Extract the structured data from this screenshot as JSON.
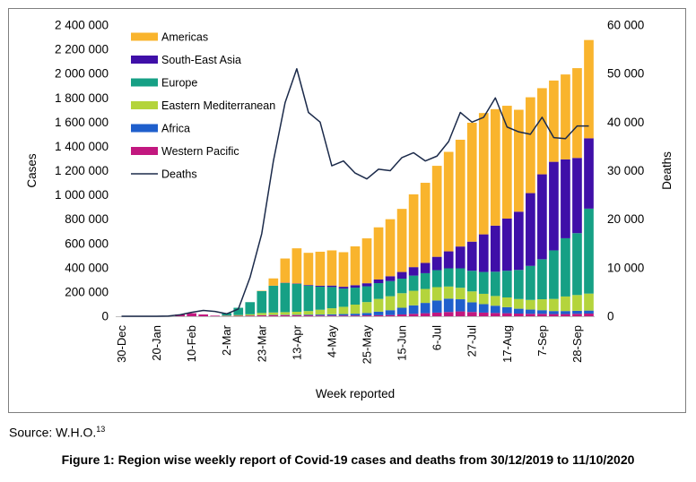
{
  "chart_data": {
    "type": "bar",
    "xlabel": "Week reported",
    "ylabel": "Cases",
    "y2label": "Deaths",
    "ylim": [
      0,
      2400000
    ],
    "y2lim": [
      0,
      60000
    ],
    "yticks": [
      "0",
      "200 000",
      "400 000",
      "600 000",
      "800 000",
      "1 000 000",
      "1 200 000",
      "1 400 000",
      "1 600 000",
      "1 800 000",
      "2 000 000",
      "2 200 000",
      "2 400 000"
    ],
    "y2ticks": [
      "0",
      "10 000",
      "20 000",
      "30 000",
      "40 000",
      "50 000",
      "60 000"
    ],
    "tick_labels": [
      "30-Dec",
      "20-Jan",
      "10-Feb",
      "2-Mar",
      "23-Mar",
      "13-Apr",
      "4-May",
      "25-May",
      "15-Jun",
      "6-Jul",
      "27-Jul",
      "17-Aug",
      "7-Sep",
      "28-Sep"
    ],
    "tick_every": 3,
    "n_weeks": 41,
    "legend_position": "top-left",
    "series": [
      {
        "name": "Americas",
        "color": "#f9b42d",
        "values": [
          0,
          0,
          0,
          0,
          0,
          0,
          0,
          0,
          0,
          0,
          0,
          0,
          3000,
          60000,
          200000,
          290000,
          265000,
          280000,
          290000,
          285000,
          320000,
          370000,
          430000,
          470000,
          520000,
          600000,
          660000,
          750000,
          820000,
          880000,
          980000,
          1000000,
          960000,
          930000,
          840000,
          790000,
          710000,
          670000,
          700000,
          740000,
          810000
        ]
      },
      {
        "name": "South-East Asia",
        "color": "#3f0fa8",
        "values": [
          0,
          0,
          0,
          0,
          0,
          0,
          0,
          0,
          0,
          0,
          0,
          0,
          500,
          1000,
          2000,
          3000,
          5000,
          8000,
          12000,
          15000,
          20000,
          25000,
          30000,
          40000,
          55000,
          70000,
          85000,
          110000,
          140000,
          180000,
          240000,
          310000,
          380000,
          430000,
          480000,
          600000,
          700000,
          730000,
          650000,
          620000,
          580000
        ]
      },
      {
        "name": "Europe",
        "color": "#16a085",
        "values": [
          0,
          0,
          0,
          0,
          0,
          0,
          0,
          0,
          0,
          20000,
          60000,
          100000,
          180000,
          220000,
          240000,
          230000,
          210000,
          190000,
          175000,
          150000,
          140000,
          130000,
          130000,
          125000,
          120000,
          125000,
          130000,
          140000,
          150000,
          160000,
          170000,
          180000,
          200000,
          220000,
          240000,
          280000,
          330000,
          400000,
          480000,
          510000,
          700000
        ]
      },
      {
        "name": "Eastern Mediterranean",
        "color": "#b4d43c",
        "values": [
          0,
          0,
          0,
          0,
          0,
          0,
          0,
          0,
          0,
          3000,
          6000,
          10000,
          18000,
          20000,
          22000,
          25000,
          30000,
          40000,
          50000,
          60000,
          75000,
          90000,
          105000,
          115000,
          120000,
          120000,
          115000,
          110000,
          100000,
          95000,
          90000,
          85000,
          80000,
          80000,
          80000,
          80000,
          90000,
          100000,
          120000,
          130000,
          140000
        ]
      },
      {
        "name": "Africa",
        "color": "#1f5fcc",
        "values": [
          0,
          0,
          0,
          0,
          0,
          0,
          0,
          0,
          0,
          0,
          0,
          200,
          1000,
          2000,
          3000,
          4000,
          6000,
          8000,
          10000,
          12000,
          15000,
          20000,
          30000,
          40000,
          55000,
          70000,
          85000,
          100000,
          110000,
          100000,
          80000,
          70000,
          60000,
          50000,
          40000,
          35000,
          30000,
          25000,
          25000,
          25000,
          25000
        ]
      },
      {
        "name": "Western Pacific",
        "color": "#c2187f",
        "values": [
          50,
          100,
          200,
          500,
          2000,
          15000,
          25000,
          15000,
          5000,
          3000,
          4000,
          6000,
          8000,
          9000,
          9000,
          8000,
          7000,
          6000,
          6000,
          6000,
          6000,
          7000,
          8000,
          10000,
          15000,
          20000,
          25000,
          30000,
          35000,
          40000,
          35000,
          30000,
          27000,
          25000,
          22000,
          20000,
          20000,
          18000,
          18000,
          20000,
          22000
        ]
      },
      {
        "name": "Deaths",
        "color": "#1b2a4a",
        "type": "line",
        "values": [
          0,
          0,
          0,
          0,
          50,
          300,
          800,
          1200,
          1000,
          500,
          1500,
          8000,
          17000,
          32000,
          44000,
          51000,
          42000,
          40000,
          31000,
          32000,
          29500,
          28300,
          30300,
          30000,
          32700,
          33700,
          32000,
          33000,
          36000,
          42000,
          40000,
          41000,
          45000,
          39000,
          38000,
          37500,
          41000,
          36800,
          36600,
          39200,
          39200
        ]
      }
    ]
  },
  "footer": {
    "source_text": "Source: W.H.O.",
    "source_ref": "13",
    "caption": "Figure 1: Region wise weekly report of Covid-19 cases and deaths from 30/12/2019 to 11/10/2020"
  }
}
